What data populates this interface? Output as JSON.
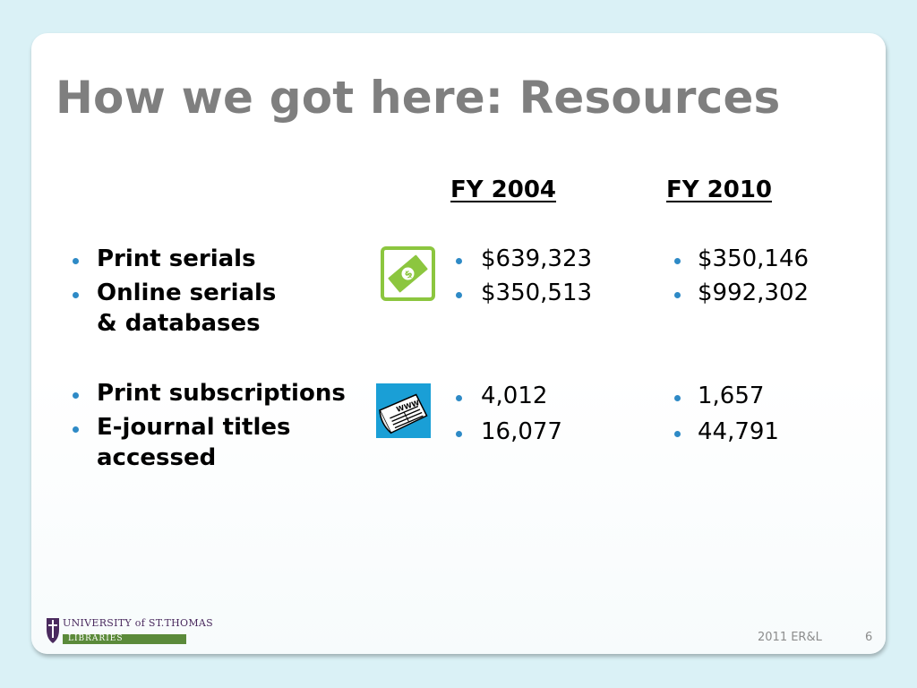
{
  "slide": {
    "title": "How we got here: Resources",
    "columns": {
      "fy2004": "FY 2004",
      "fy2010": "FY 2010"
    },
    "groups": [
      {
        "icon": "money-icon",
        "labels": [
          "Print serials",
          "Online serials",
          "& databases"
        ],
        "fy2004": [
          "$639,323",
          "$350,513"
        ],
        "fy2010": [
          "$350,146",
          "$992,302"
        ]
      },
      {
        "icon": "newspaper-icon",
        "labels": [
          "Print subscriptions",
          "E-journal titles",
          "accessed"
        ],
        "fy2004": [
          "4,012",
          "16,077"
        ],
        "fy2010": [
          "1,657",
          "44,791"
        ]
      }
    ],
    "footer": {
      "event": "2011 ER&L",
      "page_number": "6"
    },
    "logo": {
      "line1": "UNIVERSITY of ST.THOMAS",
      "line2": "LIBRARIES"
    },
    "colors": {
      "background": "#daf1f6",
      "title": "#7f7f7f",
      "bullet": "#2e8ac6",
      "money_icon": "#8cc63f",
      "newspaper_bg": "#1a9fd6"
    }
  }
}
